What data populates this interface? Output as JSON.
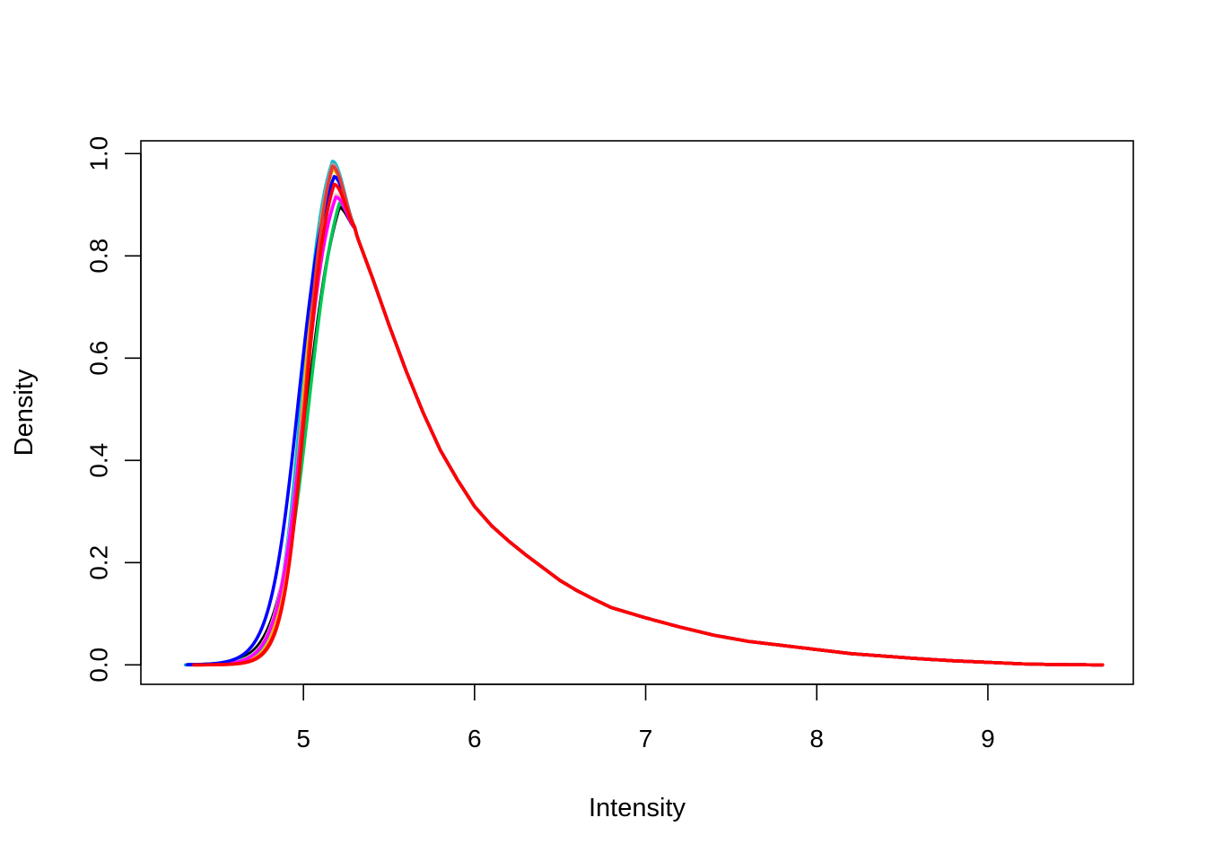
{
  "chart_data": {
    "type": "line",
    "title": "",
    "xlabel": "Intensity",
    "ylabel": "Density",
    "xlim": [
      4.05,
      9.85
    ],
    "ylim": [
      -0.038,
      1.025
    ],
    "x_ticks": [
      "5",
      "6",
      "7",
      "8",
      "9"
    ],
    "y_ticks": [
      "0.0",
      "0.2",
      "0.4",
      "0.6",
      "0.8",
      "1.0"
    ],
    "grid": false,
    "legend": "none",
    "shared_tail": [
      [
        5.3,
        0.85
      ],
      [
        5.4,
        0.76
      ],
      [
        5.5,
        0.665
      ],
      [
        5.6,
        0.575
      ],
      [
        5.7,
        0.493
      ],
      [
        5.8,
        0.42
      ],
      [
        5.9,
        0.362
      ],
      [
        6.0,
        0.31
      ],
      [
        6.1,
        0.272
      ],
      [
        6.2,
        0.242
      ],
      [
        6.3,
        0.215
      ],
      [
        6.4,
        0.19
      ],
      [
        6.5,
        0.165
      ],
      [
        6.6,
        0.145
      ],
      [
        6.7,
        0.128
      ],
      [
        6.8,
        0.112
      ],
      [
        6.9,
        0.102
      ],
      [
        7.0,
        0.092
      ],
      [
        7.2,
        0.074
      ],
      [
        7.4,
        0.058
      ],
      [
        7.6,
        0.046
      ],
      [
        7.8,
        0.038
      ],
      [
        8.0,
        0.03
      ],
      [
        8.2,
        0.022
      ],
      [
        8.4,
        0.017
      ],
      [
        8.6,
        0.012
      ],
      [
        8.8,
        0.008
      ],
      [
        9.0,
        0.005
      ],
      [
        9.2,
        0.002
      ],
      [
        9.4,
        0.0005
      ],
      [
        9.67,
        0.0
      ]
    ],
    "series": [
      {
        "color": "#000000",
        "start": 4.32,
        "peak": 0.895,
        "peak_x": 5.21,
        "rise_mu": 5.02,
        "rise_sd": 0.15
      },
      {
        "color": "#00c853",
        "start": 4.33,
        "peak": 0.903,
        "peak_x": 5.21,
        "rise_mu": 5.03,
        "rise_sd": 0.145
      },
      {
        "color": "#00bcd4",
        "start": 4.31,
        "peak": 0.985,
        "peak_x": 5.17,
        "rise_mu": 4.99,
        "rise_sd": 0.115
      },
      {
        "color": "#9e9e9e",
        "start": 4.34,
        "peak": 0.98,
        "peak_x": 5.17,
        "rise_mu": 5.0,
        "rise_sd": 0.11
      },
      {
        "color": "#f5c6cb",
        "start": 4.33,
        "peak": 0.92,
        "peak_x": 5.19,
        "rise_mu": 5.0,
        "rise_sd": 0.13
      },
      {
        "color": "#ffb300",
        "start": 4.34,
        "peak": 0.97,
        "peak_x": 5.17,
        "rise_mu": 5.0,
        "rise_sd": 0.112
      },
      {
        "color": "#ff00ff",
        "start": 4.33,
        "peak": 0.915,
        "peak_x": 5.19,
        "rise_mu": 5.0,
        "rise_sd": 0.128
      },
      {
        "color": "#0000ff",
        "start": 4.32,
        "peak": 0.955,
        "peak_x": 5.18,
        "rise_mu": 4.97,
        "rise_sd": 0.14
      },
      {
        "color": "#e53935",
        "start": 4.36,
        "peak": 0.975,
        "peak_x": 5.17,
        "rise_mu": 5.01,
        "rise_sd": 0.108
      },
      {
        "color": "#ff0000",
        "start": 4.36,
        "peak": 0.94,
        "peak_x": 5.18,
        "rise_mu": 5.01,
        "rise_sd": 0.112
      }
    ]
  }
}
